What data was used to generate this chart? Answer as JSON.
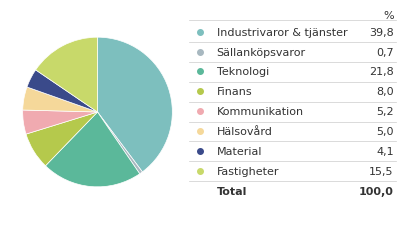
{
  "labels": [
    "Industrivaror & tjänster",
    "Sällanköpsvaror",
    "Teknologi",
    "Finans",
    "Kommunikation",
    "Hälsovård",
    "Material",
    "Fastigheter"
  ],
  "values": [
    39.8,
    0.7,
    21.8,
    8.0,
    5.2,
    5.0,
    4.1,
    15.5
  ],
  "colors": [
    "#7dbfbe",
    "#a8b8c0",
    "#5bb89a",
    "#b5c94c",
    "#f0aab0",
    "#f5d89a",
    "#3a4a8a",
    "#c8d96a"
  ],
  "display_values": [
    "39,8",
    "0,7",
    "21,8",
    "8,0",
    "5,2",
    "5,0",
    "4,1",
    "15,5"
  ],
  "total_label": "Total",
  "total_value": "100,0",
  "pct_header": "%",
  "background_color": "#ffffff",
  "text_color": "#333333",
  "line_color": "#cccccc",
  "fontsize_legend": 8.0,
  "fontsize_header": 8.0
}
